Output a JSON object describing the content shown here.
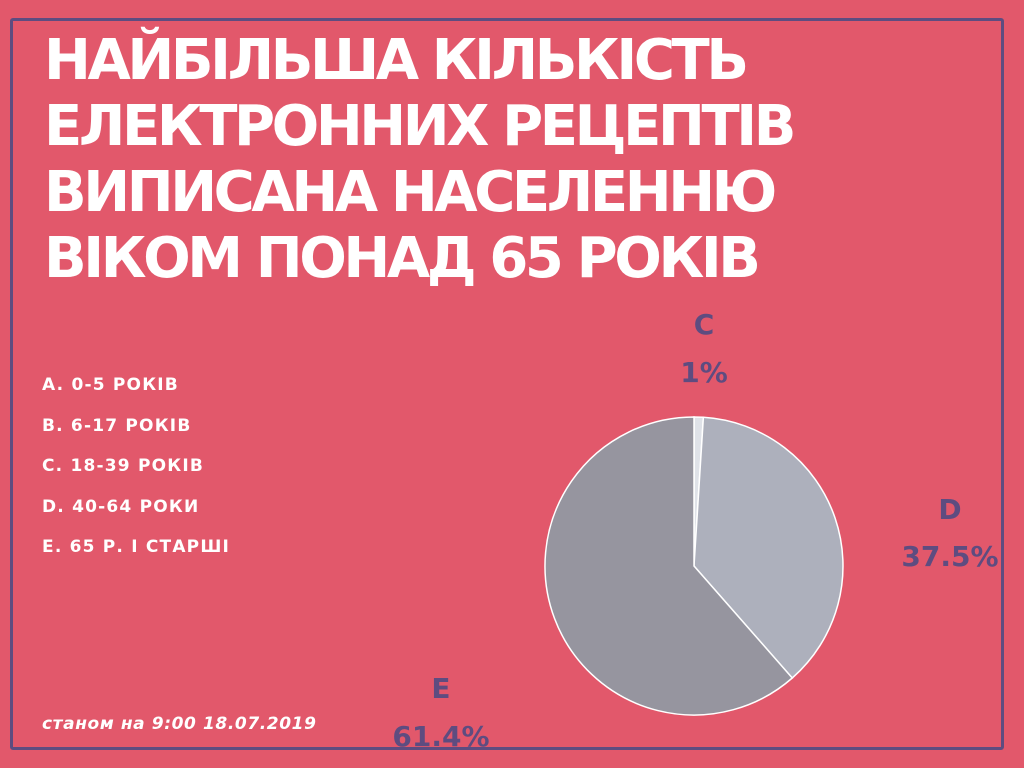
{
  "title_lines": [
    "НАЙБІЛЬША КІЛЬКІСТЬ",
    "ЕЛЕКТРОННИХ РЕЦЕПТІВ",
    "ВИПИСАНА НАСЕЛЕННЮ",
    "ВІКОМ ПОНАД 65 РОКІВ"
  ],
  "legend": [
    "A. 0-5 РОКІВ",
    "B. 6-17 РОКІВ",
    "C. 18-39 РОКІВ",
    "D. 40-64 РОКИ",
    "E. 65 Р. І СТАРШІ"
  ],
  "note": "станом на 9:00 18.07.2019",
  "colors": {
    "background": "#e2586b",
    "frame": "#5e4c80",
    "label": "#5e4c80"
  },
  "chart_data": {
    "type": "pie",
    "title": "",
    "slices": [
      {
        "label": "C",
        "percent_label": "1%",
        "value": 1.0,
        "color": "#dfe2e8"
      },
      {
        "label": "D",
        "percent_label": "37.5%",
        "value": 37.5,
        "color": "#adb0bc"
      },
      {
        "label": "E",
        "percent_label": "61.4%",
        "value": 61.4,
        "color": "#96959f"
      }
    ],
    "start_angle_deg": 0,
    "direction": "clockwise",
    "legend": "left"
  }
}
